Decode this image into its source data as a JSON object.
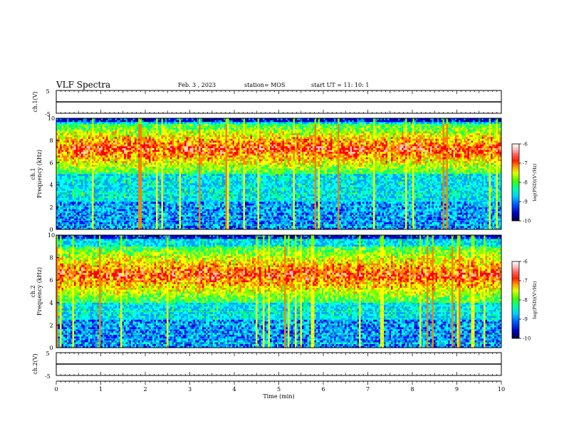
{
  "header": {
    "title": "VLF Spectra",
    "date": "Feb. 3  , 2023",
    "station": "station= MOS",
    "start": "start  UT  =   11: 10: 1"
  },
  "chart_data": [
    {
      "type": "line",
      "panel": "ch1-waveform",
      "ylabel": "ch.1(V)",
      "yticks": [
        "5",
        "-5"
      ],
      "ylim": [
        -5,
        5
      ],
      "xlim": [
        0,
        10
      ],
      "series": [
        {
          "x": [
            0,
            10
          ],
          "values": [
            0,
            0
          ]
        }
      ]
    },
    {
      "type": "heatmap",
      "panel": "ch1-spectrogram",
      "ylabel": "ch.1\nFrequency (kHz)",
      "ylim": [
        0,
        10
      ],
      "xlim": [
        0,
        10
      ],
      "yticks": [
        "0",
        "2",
        "4",
        "6",
        "8",
        "10"
      ],
      "colorbar": {
        "label": "log(PSD)(V²/Hz)",
        "range": [
          -10,
          -6
        ],
        "ticks": [
          "-6",
          "-7",
          "-8",
          "-9",
          "-10"
        ]
      },
      "description_levels": {
        "band_high_kHz": [
          5,
          9.5
        ],
        "peak_level": -7,
        "background_level": -9.5
      }
    },
    {
      "type": "heatmap",
      "panel": "ch2-spectrogram",
      "ylabel": "ch.2\nFrequency (kHz)",
      "ylim": [
        0,
        10
      ],
      "xlim": [
        0,
        10
      ],
      "yticks": [
        "0",
        "2",
        "4",
        "6",
        "8",
        "10"
      ],
      "colorbar": {
        "label": "log(PSD)(V²/Hz)",
        "range": [
          -10,
          -6
        ],
        "ticks": [
          "-6",
          "-7",
          "-8",
          "-9",
          "-10"
        ]
      },
      "description_levels": {
        "band_high_kHz": [
          4,
          9
        ],
        "peak_level": -7,
        "background_level": -9.5
      }
    },
    {
      "type": "line",
      "panel": "ch2-waveform",
      "ylabel": "ch.2(V)",
      "yticks": [
        "5",
        "-5"
      ],
      "ylim": [
        -5,
        5
      ],
      "xlim": [
        0,
        10
      ],
      "series": [
        {
          "x": [
            0,
            10
          ],
          "values": [
            0,
            0
          ]
        }
      ]
    }
  ],
  "xaxis": {
    "label": "Time  (min)",
    "range": [
      0,
      10
    ],
    "ticks": [
      "0",
      "1",
      "2",
      "3",
      "4",
      "5",
      "6",
      "7",
      "8",
      "9",
      "10"
    ]
  },
  "colors": {
    "colormap": [
      "#000080",
      "#0000ff",
      "#00a0ff",
      "#00ffff",
      "#00ff80",
      "#80ff00",
      "#ffff00",
      "#ff8000",
      "#ff0000",
      "#ffc0c0",
      "#ffffff"
    ],
    "background": "#00006a",
    "line": "#000000"
  }
}
